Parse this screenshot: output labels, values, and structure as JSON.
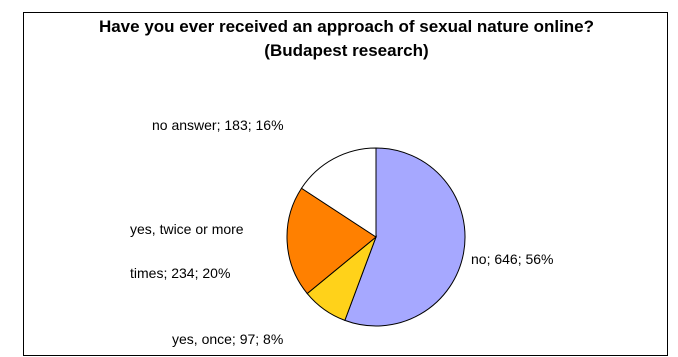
{
  "chart_data": {
    "type": "pie",
    "title": "Have you ever received an approach of sexual nature online?",
    "subtitle": "(Budapest research)",
    "slices": [
      {
        "label": "no",
        "value": 646,
        "percent": 56,
        "color": "#A6A8FF"
      },
      {
        "label": "yes, once",
        "value": 97,
        "percent": 8,
        "color": "#FFD21A"
      },
      {
        "label": "yes, twice or more times",
        "value": 234,
        "percent": 20,
        "color": "#FF8000"
      },
      {
        "label": "no answer",
        "value": 183,
        "percent": 16,
        "color": "#FFFFFF"
      }
    ],
    "data_labels": [
      "no; 646; 56%",
      "yes, once; 97; 8%",
      "yes, twice or more",
      "times; 234; 20%",
      "no answer; 183; 16%"
    ]
  }
}
